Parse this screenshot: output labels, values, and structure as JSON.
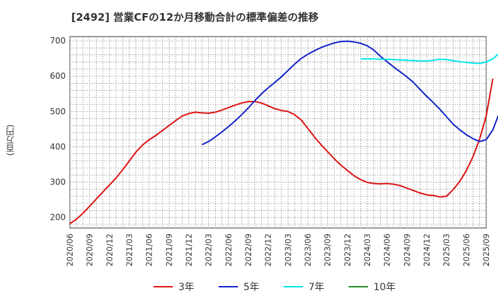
{
  "title": "[2492]  営業CFの12か月移動合計の標準偏差の推移",
  "chart_data": {
    "type": "line",
    "title": "[2492]  営業CFの12か月移動合計の標準偏差の推移",
    "xlabel": "",
    "ylabel": "(百万円)",
    "ylim": [
      170,
      712
    ],
    "yticks": [
      200,
      300,
      400,
      500,
      600,
      700
    ],
    "xticks": [
      "2020/06",
      "2020/09",
      "2020/12",
      "2021/03",
      "2021/06",
      "2021/09",
      "2021/12",
      "2022/03",
      "2022/06",
      "2022/09",
      "2022/12",
      "2023/03",
      "2023/06",
      "2023/09",
      "2023/12",
      "2024/03",
      "2024/06",
      "2024/09",
      "2024/12",
      "2025/03",
      "2025/06",
      "2025/09"
    ],
    "grid": true,
    "legend_position": "bottom",
    "series": [
      {
        "name": "3年",
        "color": "#dd1111",
        "points": [
          [
            "2020/06",
            182
          ],
          [
            "2020/07",
            195
          ],
          [
            "2020/08",
            212
          ],
          [
            "2020/09",
            232
          ],
          [
            "2020/10",
            252
          ],
          [
            "2020/11",
            272
          ],
          [
            "2020/12",
            292
          ],
          [
            "2021/01",
            312
          ],
          [
            "2021/02",
            335
          ],
          [
            "2021/03",
            360
          ],
          [
            "2021/04",
            385
          ],
          [
            "2021/05",
            405
          ],
          [
            "2021/06",
            420
          ],
          [
            "2021/07",
            432
          ],
          [
            "2021/08",
            446
          ],
          [
            "2021/09",
            460
          ],
          [
            "2021/10",
            474
          ],
          [
            "2021/11",
            487
          ],
          [
            "2021/12",
            494
          ],
          [
            "2022/01",
            498
          ],
          [
            "2022/02",
            496
          ],
          [
            "2022/03",
            495
          ],
          [
            "2022/04",
            498
          ],
          [
            "2022/05",
            504
          ],
          [
            "2022/06",
            511
          ],
          [
            "2022/07",
            518
          ],
          [
            "2022/08",
            524
          ],
          [
            "2022/09",
            528
          ],
          [
            "2022/10",
            528
          ],
          [
            "2022/11",
            524
          ],
          [
            "2022/12",
            516
          ],
          [
            "2023/01",
            508
          ],
          [
            "2023/02",
            503
          ],
          [
            "2023/03",
            500
          ],
          [
            "2023/04",
            491
          ],
          [
            "2023/05",
            476
          ],
          [
            "2023/06",
            452
          ],
          [
            "2023/07",
            428
          ],
          [
            "2023/08",
            406
          ],
          [
            "2023/09",
            386
          ],
          [
            "2023/10",
            366
          ],
          [
            "2023/11",
            348
          ],
          [
            "2023/12",
            333
          ],
          [
            "2024/01",
            318
          ],
          [
            "2024/02",
            307
          ],
          [
            "2024/03",
            299
          ],
          [
            "2024/04",
            296
          ],
          [
            "2024/05",
            295
          ],
          [
            "2024/06",
            296
          ],
          [
            "2024/07",
            294
          ],
          [
            "2024/08",
            290
          ],
          [
            "2024/09",
            283
          ],
          [
            "2024/10",
            276
          ],
          [
            "2024/11",
            269
          ],
          [
            "2024/12",
            264
          ],
          [
            "2025/01",
            262
          ],
          [
            "2025/02",
            258
          ],
          [
            "2025/03",
            260
          ],
          [
            "2025/04",
            279
          ],
          [
            "2025/05",
            302
          ],
          [
            "2025/06",
            333
          ],
          [
            "2025/07",
            372
          ],
          [
            "2025/08",
            422
          ],
          [
            "2025/09",
            488
          ],
          [
            "2025/10",
            593
          ]
        ]
      },
      {
        "name": "5年",
        "color": "#1020c8",
        "points": [
          [
            "2022/02",
            406
          ],
          [
            "2022/03",
            415
          ],
          [
            "2022/04",
            428
          ],
          [
            "2022/05",
            442
          ],
          [
            "2022/06",
            457
          ],
          [
            "2022/07",
            473
          ],
          [
            "2022/08",
            491
          ],
          [
            "2022/09",
            510
          ],
          [
            "2022/10",
            531
          ],
          [
            "2022/11",
            550
          ],
          [
            "2022/12",
            567
          ],
          [
            "2023/01",
            582
          ],
          [
            "2023/02",
            598
          ],
          [
            "2023/03",
            616
          ],
          [
            "2023/04",
            634
          ],
          [
            "2023/05",
            650
          ],
          [
            "2023/06",
            662
          ],
          [
            "2023/07",
            672
          ],
          [
            "2023/08",
            681
          ],
          [
            "2023/09",
            688
          ],
          [
            "2023/10",
            694
          ],
          [
            "2023/11",
            698
          ],
          [
            "2023/12",
            699
          ],
          [
            "2024/01",
            697
          ],
          [
            "2024/02",
            693
          ],
          [
            "2024/03",
            686
          ],
          [
            "2024/04",
            674
          ],
          [
            "2024/05",
            656
          ],
          [
            "2024/06",
            641
          ],
          [
            "2024/07",
            626
          ],
          [
            "2024/08",
            612
          ],
          [
            "2024/09",
            598
          ],
          [
            "2024/10",
            582
          ],
          [
            "2024/11",
            562
          ],
          [
            "2024/12",
            543
          ],
          [
            "2025/01",
            525
          ],
          [
            "2025/02",
            506
          ],
          [
            "2025/03",
            485
          ],
          [
            "2025/04",
            464
          ],
          [
            "2025/05",
            448
          ],
          [
            "2025/06",
            434
          ],
          [
            "2025/07",
            423
          ],
          [
            "2025/08",
            415
          ],
          [
            "2025/09",
            420
          ],
          [
            "2025/10",
            448
          ],
          [
            "2025/11",
            497
          ]
        ]
      },
      {
        "name": "7年",
        "color": "#00e5ee",
        "points": [
          [
            "2024/02",
            649
          ],
          [
            "2024/03",
            649
          ],
          [
            "2024/04",
            649
          ],
          [
            "2024/05",
            648
          ],
          [
            "2024/06",
            648
          ],
          [
            "2024/07",
            647
          ],
          [
            "2024/08",
            646
          ],
          [
            "2024/09",
            645
          ],
          [
            "2024/10",
            644
          ],
          [
            "2024/11",
            643
          ],
          [
            "2024/12",
            643
          ],
          [
            "2025/01",
            645
          ],
          [
            "2025/02",
            648
          ],
          [
            "2025/03",
            647
          ],
          [
            "2025/04",
            644
          ],
          [
            "2025/05",
            641
          ],
          [
            "2025/06",
            639
          ],
          [
            "2025/07",
            637
          ],
          [
            "2025/08",
            636
          ],
          [
            "2025/09",
            640
          ],
          [
            "2025/10",
            649
          ],
          [
            "2025/11",
            666
          ]
        ]
      },
      {
        "name": "10年",
        "color": "#228b22",
        "points": []
      }
    ]
  }
}
